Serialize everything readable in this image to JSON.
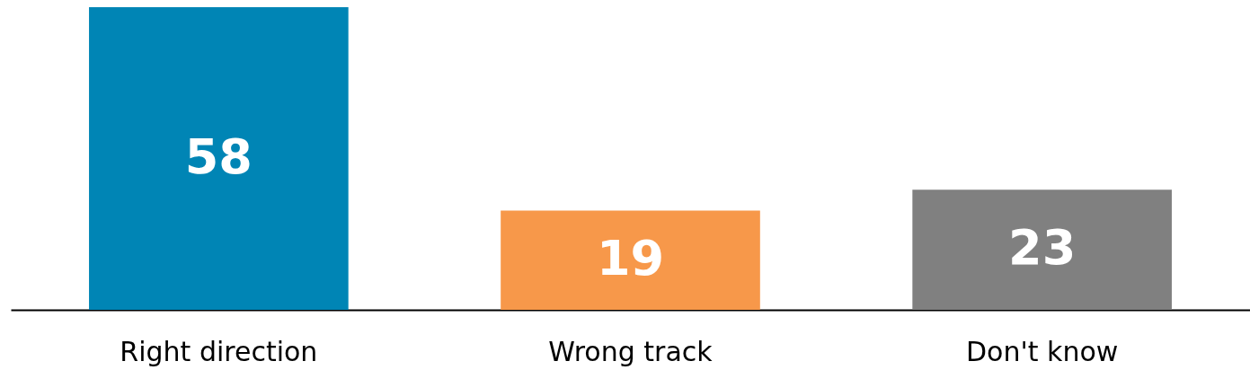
{
  "chart_data": {
    "type": "bar",
    "categories": [
      "Right direction",
      "Wrong track",
      "Don't know"
    ],
    "values": [
      58,
      19,
      23
    ],
    "colors": [
      "#0085b5",
      "#f7984a",
      "#808080"
    ],
    "data_labels": true
  }
}
